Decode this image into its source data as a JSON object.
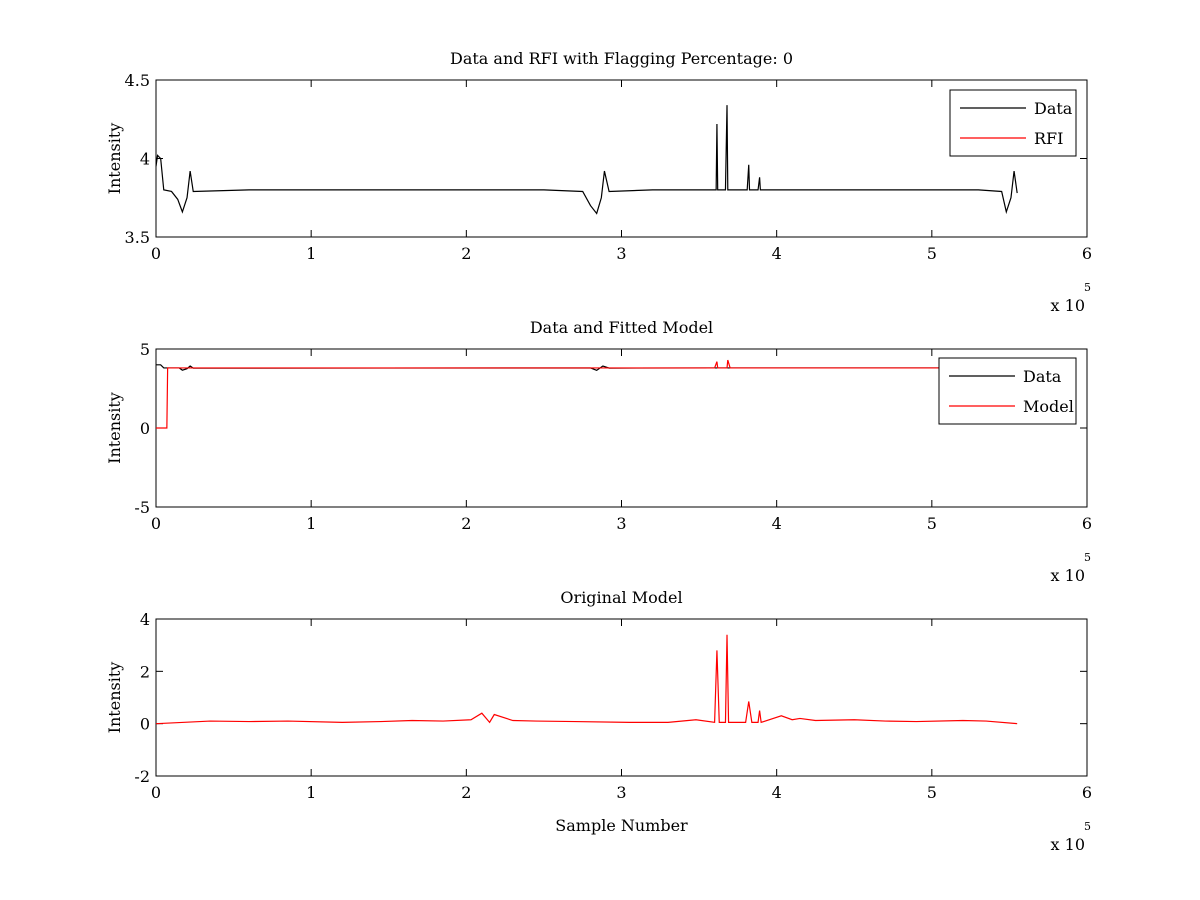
{
  "chart_data": [
    {
      "type": "line",
      "title": "Data and RFI with Flagging Percentage: 0",
      "xlabel": "",
      "ylabel": "Intensity",
      "xlim": [
        0,
        6
      ],
      "ylim": [
        3.5,
        4.5
      ],
      "x_ticks": [
        "0",
        "1",
        "2",
        "3",
        "4",
        "5",
        "6"
      ],
      "y_ticks": [
        "3.5",
        "4",
        "4.5"
      ],
      "x_multiplier": "x 10",
      "x_exponent": "5",
      "legend": {
        "placement": "top-right",
        "entries": [
          "Data",
          "RFI"
        ]
      },
      "series": [
        {
          "name": "Data",
          "color": "#000000",
          "x": [
            0,
            0.01,
            0.03,
            0.05,
            0.1,
            0.14,
            0.17,
            0.2,
            0.22,
            0.24,
            0.6,
            1.2,
            1.8,
            2.1,
            2.5,
            2.75,
            2.8,
            2.84,
            2.87,
            2.89,
            2.92,
            3.2,
            3.6,
            3.61,
            3.615,
            3.62,
            3.65,
            3.67,
            3.68,
            3.685,
            3.7,
            3.81,
            3.82,
            3.825,
            3.83,
            3.88,
            3.89,
            3.895,
            3.9,
            4.2,
            4.8,
            5.3,
            5.45,
            5.48,
            5.51,
            5.53,
            5.55
          ],
          "y": [
            3.95,
            4.02,
            4.0,
            3.8,
            3.79,
            3.74,
            3.66,
            3.75,
            3.92,
            3.79,
            3.8,
            3.8,
            3.8,
            3.8,
            3.8,
            3.79,
            3.7,
            3.65,
            3.75,
            3.92,
            3.79,
            3.8,
            3.8,
            3.8,
            4.22,
            3.8,
            3.8,
            3.8,
            4.34,
            3.8,
            3.8,
            3.8,
            3.96,
            3.8,
            3.8,
            3.8,
            3.88,
            3.8,
            3.8,
            3.8,
            3.8,
            3.8,
            3.79,
            3.66,
            3.75,
            3.92,
            3.78
          ]
        },
        {
          "name": "RFI",
          "color": "#ff0000",
          "x": [],
          "y": []
        }
      ]
    },
    {
      "type": "line",
      "title": "Data and Fitted Model",
      "xlabel": "",
      "ylabel": "Intensity",
      "xlim": [
        0,
        6
      ],
      "ylim": [
        -5,
        5
      ],
      "x_ticks": [
        "0",
        "1",
        "2",
        "3",
        "4",
        "5",
        "6"
      ],
      "y_ticks": [
        "-5",
        "0",
        "5"
      ],
      "x_multiplier": "x 10",
      "x_exponent": "5",
      "legend": {
        "placement": "top-right",
        "entries": [
          "Data",
          "Model"
        ]
      },
      "series": [
        {
          "name": "Data",
          "color": "#000000",
          "x": [
            0,
            0.03,
            0.05,
            0.15,
            0.17,
            0.2,
            0.22,
            0.24,
            2.8,
            2.84,
            2.88,
            2.92,
            3.6,
            5.55
          ],
          "y": [
            4.0,
            4.0,
            3.8,
            3.8,
            3.66,
            3.75,
            3.92,
            3.79,
            3.8,
            3.65,
            3.92,
            3.79,
            3.8,
            3.8
          ]
        },
        {
          "name": "Model",
          "color": "#ff0000",
          "x": [
            0,
            0.07,
            0.075,
            0.2,
            0.3,
            3.6,
            3.615,
            3.62,
            3.68,
            3.685,
            3.7,
            5.55
          ],
          "y": [
            0,
            0,
            3.8,
            3.8,
            3.8,
            3.8,
            4.2,
            3.8,
            3.8,
            4.3,
            3.8,
            3.8
          ]
        }
      ]
    },
    {
      "type": "line",
      "title": "Original Model",
      "xlabel": "Sample Number",
      "ylabel": "Intensity",
      "xlim": [
        0,
        6
      ],
      "ylim": [
        -2,
        4
      ],
      "x_ticks": [
        "0",
        "1",
        "2",
        "3",
        "4",
        "5",
        "6"
      ],
      "y_ticks": [
        "-2",
        "0",
        "2",
        "4"
      ],
      "x_multiplier": "x 10",
      "x_exponent": "5",
      "legend": null,
      "series": [
        {
          "name": "",
          "color": "#ff0000",
          "x": [
            0,
            0.35,
            0.6,
            0.85,
            1.2,
            1.45,
            1.65,
            1.85,
            2.03,
            2.1,
            2.15,
            2.18,
            2.3,
            2.45,
            2.7,
            3.05,
            3.3,
            3.48,
            3.6,
            3.615,
            3.63,
            3.67,
            3.68,
            3.69,
            3.8,
            3.82,
            3.84,
            3.88,
            3.89,
            3.9,
            4.03,
            4.1,
            4.15,
            4.25,
            4.5,
            4.7,
            4.9,
            5.2,
            5.35,
            5.55
          ],
          "y": [
            0,
            0.1,
            0.08,
            0.1,
            0.05,
            0.08,
            0.12,
            0.1,
            0.15,
            0.4,
            0.05,
            0.35,
            0.12,
            0.1,
            0.08,
            0.05,
            0.05,
            0.15,
            0.05,
            2.8,
            0.05,
            0.05,
            3.4,
            0.05,
            0.05,
            0.85,
            0.05,
            0.05,
            0.5,
            0.05,
            0.3,
            0.15,
            0.2,
            0.12,
            0.15,
            0.1,
            0.08,
            0.12,
            0.1,
            0
          ]
        }
      ]
    }
  ]
}
